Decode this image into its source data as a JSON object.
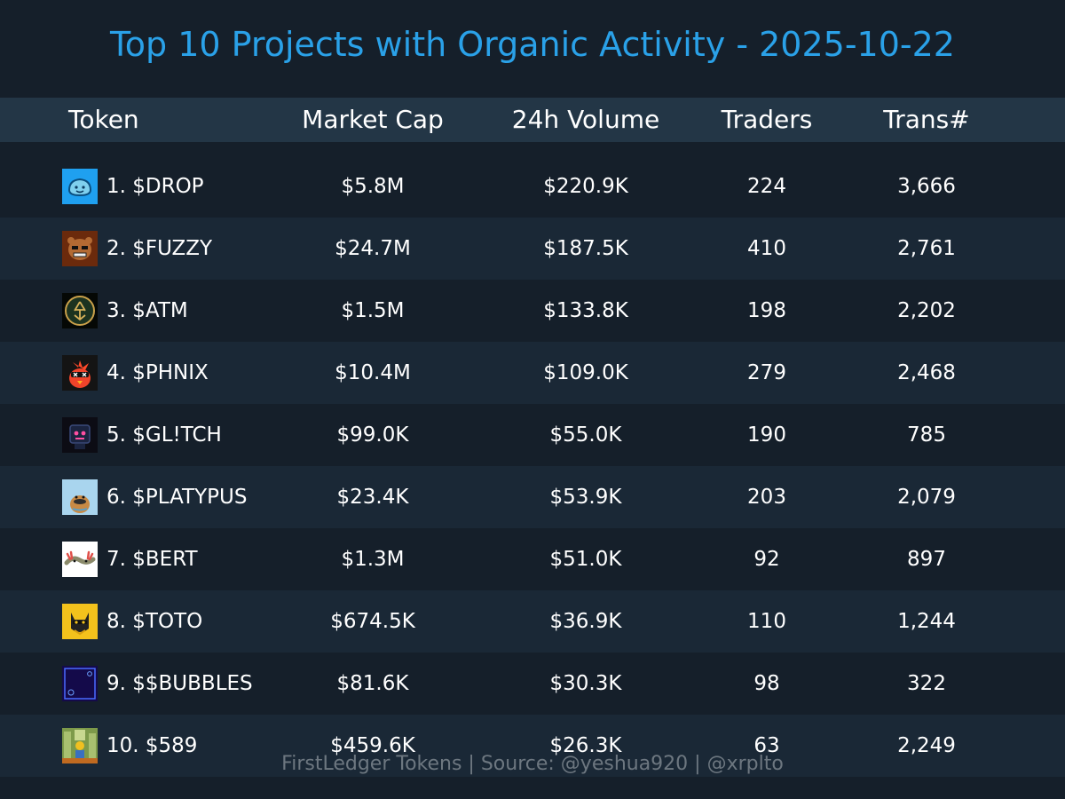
{
  "title": "Top 10 Projects with Organic Activity - 2025-10-22",
  "footer": "FirstLedger Tokens | Source: @yeshua920 | @xrplto",
  "chart_data": {
    "type": "table",
    "columns": [
      "Token",
      "Market Cap",
      "24h Volume",
      "Traders",
      "Trans#"
    ],
    "rows": [
      {
        "token": "1. $DROP",
        "market_cap": "$5.8M",
        "volume": "$220.9K",
        "traders": "224",
        "trans": "3,666",
        "icon": "drop-token-icon"
      },
      {
        "token": "2. $FUZZY",
        "market_cap": "$24.7M",
        "volume": "$187.5K",
        "traders": "410",
        "trans": "2,761",
        "icon": "fuzzy-token-icon"
      },
      {
        "token": "3. $ATM",
        "market_cap": "$1.5M",
        "volume": "$133.8K",
        "traders": "198",
        "trans": "2,202",
        "icon": "atm-token-icon"
      },
      {
        "token": "4. $PHNIX",
        "market_cap": "$10.4M",
        "volume": "$109.0K",
        "traders": "279",
        "trans": "2,468",
        "icon": "phnix-token-icon"
      },
      {
        "token": "5. $GL!TCH",
        "market_cap": "$99.0K",
        "volume": "$55.0K",
        "traders": "190",
        "trans": "785",
        "icon": "glitch-token-icon"
      },
      {
        "token": "6. $PLATYPUS",
        "market_cap": "$23.4K",
        "volume": "$53.9K",
        "traders": "203",
        "trans": "2,079",
        "icon": "platypus-token-icon",
        "icon_text": "PLATYPUS"
      },
      {
        "token": "7. $BERT",
        "market_cap": "$1.3M",
        "volume": "$51.0K",
        "traders": "92",
        "trans": "897",
        "icon": "bert-token-icon"
      },
      {
        "token": "8. $TOTO",
        "market_cap": "$674.5K",
        "volume": "$36.9K",
        "traders": "110",
        "trans": "1,244",
        "icon": "toto-token-icon"
      },
      {
        "token": "9. $$BUBBLES",
        "market_cap": "$81.6K",
        "volume": "$30.3K",
        "traders": "98",
        "trans": "322",
        "icon": "bubbles-token-icon",
        "icon_text": "MEME BUBBLES"
      },
      {
        "token": "10. $589",
        "market_cap": "$459.6K",
        "volume": "$26.3K",
        "traders": "63",
        "trans": "2,249",
        "icon": "589-token-icon"
      }
    ]
  },
  "colors": {
    "background": "#151f2a",
    "row_alt": "#1a2836",
    "header_bg": "#233646",
    "title": "#2aa1e8",
    "footer": "#6d7780"
  }
}
